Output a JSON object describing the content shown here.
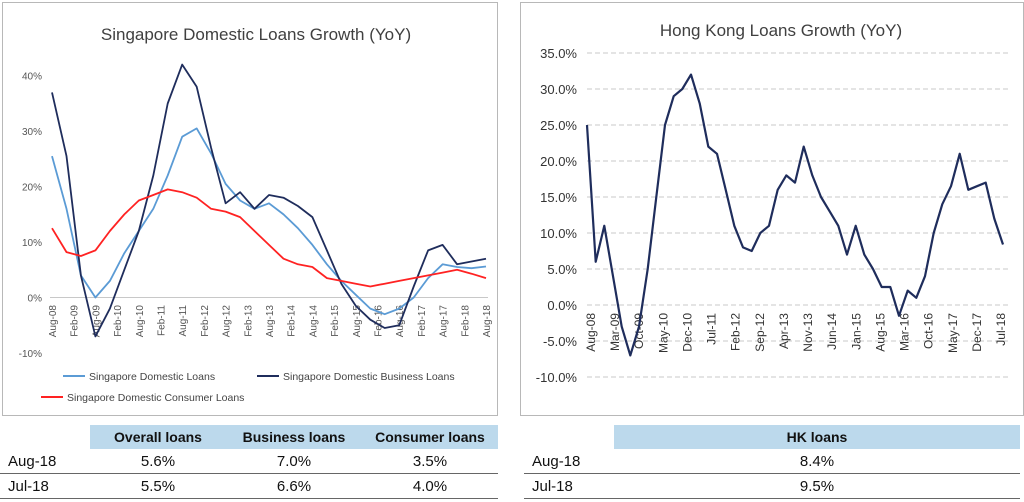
{
  "chart_data": [
    {
      "type": "line",
      "title": "Singapore Domestic Loans Growth (YoY)",
      "y_ticks": [
        "40%",
        "30%",
        "20%",
        "10%",
        "0%",
        "-10%"
      ],
      "ylim": [
        -10,
        45
      ],
      "x_ticks": [
        "Aug-08",
        "Feb-09",
        "Aug-09",
        "Feb-10",
        "Aug-10",
        "Feb-11",
        "Aug-11",
        "Feb-12",
        "Aug-12",
        "Feb-13",
        "Aug-13",
        "Feb-14",
        "Aug-14",
        "Feb-15",
        "Aug-15",
        "Feb-16",
        "Aug-16",
        "Feb-17",
        "Aug-17",
        "Feb-18",
        "Aug-18"
      ],
      "legend": "bottom",
      "series": [
        {
          "name": "Singapore Domestic Loans",
          "color": "#5b9bd5",
          "values": [
            25.5,
            16,
            4,
            0,
            3,
            8,
            12,
            16,
            22,
            29,
            30.5,
            26,
            20.5,
            17.5,
            16,
            17,
            15,
            12.5,
            9.5,
            6,
            3,
            0.5,
            -2,
            -3,
            -2,
            0,
            3.5,
            6,
            5.5,
            5.3,
            5.6
          ]
        },
        {
          "name": "Singapore Domestic Business Loans",
          "color": "#1f2d5c",
          "values": [
            37,
            25.5,
            4,
            -7,
            -2,
            5,
            12,
            22,
            35,
            42,
            38,
            27,
            17,
            19,
            16,
            18.5,
            18,
            16.5,
            14.5,
            8.5,
            2.5,
            -1.5,
            -4,
            -5.5,
            -5,
            2,
            8.5,
            9.5,
            6,
            6.5,
            7.0
          ]
        },
        {
          "name": "Singapore Domestic Consumer Loans",
          "color": "#ff2222",
          "values": [
            12.5,
            8.2,
            7.5,
            8.5,
            12,
            15,
            17.5,
            18.5,
            19.5,
            19,
            18,
            16,
            15.5,
            14.5,
            12,
            9.5,
            7,
            6,
            5.5,
            3.5,
            3,
            2.5,
            2,
            2.5,
            3,
            3.5,
            4,
            4.5,
            5,
            4.3,
            3.5
          ]
        }
      ],
      "table": {
        "headers": [
          "",
          "Overall loans",
          "Business loans",
          "Consumer loans"
        ],
        "rows": [
          [
            "Aug-18",
            "5.6%",
            "7.0%",
            "3.5%"
          ],
          [
            "Jul-18",
            "5.5%",
            "6.6%",
            "4.0%"
          ]
        ]
      }
    },
    {
      "type": "line",
      "title": "Hong Kong Loans Growth (YoY)",
      "y_ticks": [
        "35.0%",
        "30.0%",
        "25.0%",
        "20.0%",
        "15.0%",
        "10.0%",
        "5.0%",
        "0.0%",
        "-5.0%",
        "-10.0%"
      ],
      "ylim": [
        -10,
        35
      ],
      "x_ticks": [
        "Aug-08",
        "Mar-09",
        "Oct-09",
        "May-10",
        "Dec-10",
        "Jul-11",
        "Feb-12",
        "Sep-12",
        "Apr-13",
        "Nov-13",
        "Jun-14",
        "Jan-15",
        "Aug-15",
        "Mar-16",
        "Oct-16",
        "May-17",
        "Dec-17",
        "Jul-18"
      ],
      "grid": true,
      "series": [
        {
          "name": "HK loans",
          "color": "#1f2d5c",
          "values": [
            25,
            6,
            11,
            4,
            -3,
            -7,
            -3,
            5,
            15,
            25,
            29,
            30,
            32,
            28,
            22,
            21,
            16,
            11,
            8,
            7.5,
            10,
            11,
            16,
            18,
            17,
            22,
            18,
            15,
            13,
            11,
            7,
            11,
            7,
            5,
            2.5,
            2.5,
            -1.5,
            2,
            1,
            4,
            10,
            14,
            16.5,
            21,
            16,
            16.5,
            17,
            12,
            8.4
          ]
        }
      ],
      "table": {
        "headers": [
          "",
          "HK loans"
        ],
        "rows": [
          [
            "Aug-18",
            "8.4%"
          ],
          [
            "Jul-18",
            "9.5%"
          ]
        ]
      }
    }
  ]
}
